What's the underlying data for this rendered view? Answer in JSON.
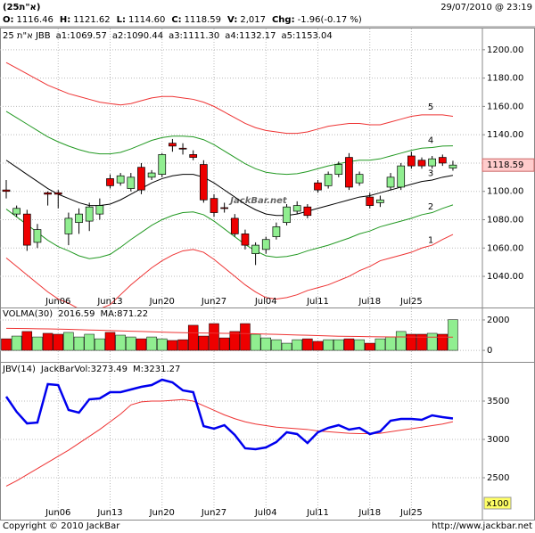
{
  "header": {
    "symbol": "(25א\"ת)",
    "datetime": "29/07/2010 @ 23:19",
    "stats": [
      {
        "label": "O:",
        "value": "1116.46"
      },
      {
        "label": "H:",
        "value": "1121.62"
      },
      {
        "label": "L:",
        "value": "1114.60"
      },
      {
        "label": "C:",
        "value": "1118.59"
      },
      {
        "label": "V:",
        "value": "2,017"
      },
      {
        "label": "Chg:",
        "value": "-1.96(-0.17 %)"
      }
    ]
  },
  "footer": {
    "copyright": "Copyright © 2010 JackBar",
    "url": "http://www.jackbar.net"
  },
  "chart_data": [
    {
      "type": "candlestick",
      "watermark": "JackBar.net",
      "legend": [
        "25 א\"ת JBB",
        "a1:1069.57",
        "a2:1090.44",
        "a3:1111.30",
        "a4:1132.17",
        "a5:1153.04"
      ],
      "categories": [
        null,
        null,
        null,
        null,
        null,
        "Jun06",
        null,
        null,
        null,
        null,
        "Jun13",
        null,
        null,
        null,
        null,
        "Jun20",
        null,
        null,
        null,
        null,
        "Jun27",
        null,
        null,
        null,
        null,
        "Jul04",
        null,
        null,
        null,
        null,
        "Jul11",
        null,
        null,
        null,
        null,
        "Jul18",
        null,
        null,
        null,
        "Jul25",
        null,
        null,
        null,
        null
      ],
      "open": [
        1101,
        1084,
        1084,
        1064,
        1099,
        1099,
        1070,
        1078,
        1079,
        1084,
        1109,
        1106,
        1102,
        1117,
        1110,
        1112,
        1134,
        1130.5,
        1126,
        1119,
        1095,
        1088.5,
        1081,
        1070,
        1056,
        1059,
        1068,
        1078,
        1086,
        1089,
        1106,
        1104,
        1112,
        1124,
        1106,
        1096,
        1092,
        1103,
        1103,
        1125,
        1122,
        1118,
        1124,
        1116.46
      ],
      "high": [
        1108,
        1090,
        1087,
        1077,
        1100,
        1101,
        1085,
        1088,
        1092,
        1095,
        1112,
        1113,
        1113,
        1120,
        1115,
        1127,
        1137,
        1134,
        1129,
        1122,
        1098,
        1092,
        1084,
        1073,
        1064,
        1068,
        1078,
        1091,
        1093,
        1091,
        1108,
        1114,
        1121,
        1127,
        1114,
        1099,
        1097,
        1113,
        1120,
        1128,
        1124,
        1125,
        1126,
        1121.62
      ],
      "low": [
        1095,
        1082,
        1058,
        1060,
        1090,
        1088,
        1062,
        1070,
        1072,
        1080,
        1102,
        1104,
        1100,
        1098,
        1108,
        1110,
        1128,
        1126,
        1122,
        1092,
        1082,
        1085,
        1068,
        1059,
        1048,
        1056,
        1066,
        1076,
        1084,
        1081,
        1099,
        1102,
        1110,
        1101,
        1104,
        1088,
        1089,
        1101,
        1101,
        1116,
        1116,
        1116,
        1118,
        1114.6
      ],
      "close": [
        1100,
        1088,
        1062,
        1073,
        1098,
        1098,
        1081,
        1084,
        1089,
        1090,
        1104,
        1111,
        1110,
        1101,
        1113,
        1126,
        1132,
        1130,
        1124,
        1094,
        1085,
        1088,
        1070,
        1062,
        1062,
        1066,
        1075,
        1089,
        1090,
        1083,
        1101,
        1112,
        1119,
        1103,
        1112,
        1090,
        1094,
        1110,
        1118,
        1118,
        1118,
        1123,
        1120,
        1118.59
      ],
      "up_color": "#90ee90",
      "down_color": "#ee0000",
      "series": [
        {
          "name": "5",
          "color": "#ee3333",
          "values": [
            1191,
            1187,
            1183,
            1179,
            1175,
            1172,
            1169,
            1167,
            1165,
            1163,
            1162,
            1161,
            1162,
            1164,
            1166,
            1167,
            1167,
            1166,
            1165,
            1163,
            1160,
            1156,
            1152,
            1148,
            1145,
            1143,
            1142,
            1141,
            1141,
            1142,
            1144,
            1146,
            1147,
            1148,
            1148,
            1147,
            1147,
            1149,
            1151,
            1153,
            1154,
            1154,
            1154,
            1153.04
          ]
        },
        {
          "name": "4",
          "color": "#229922",
          "values": [
            1156.5,
            1152,
            1147.5,
            1143,
            1138.5,
            1135,
            1132,
            1129.5,
            1127.5,
            1126.5,
            1126.5,
            1127.5,
            1130,
            1133,
            1136,
            1138,
            1139,
            1139,
            1138.5,
            1136.5,
            1133,
            1128.5,
            1124,
            1119.5,
            1116,
            1113.5,
            1112.5,
            1112,
            1112.5,
            1114,
            1116,
            1118,
            1119.5,
            1121,
            1122,
            1122,
            1123,
            1125,
            1127,
            1129,
            1130.5,
            1131,
            1132,
            1132.17
          ]
        },
        {
          "name": "3",
          "color": "#000000",
          "values": [
            1122,
            1117,
            1112,
            1107,
            1102,
            1098,
            1095,
            1092,
            1090,
            1090,
            1091,
            1094,
            1098,
            1102,
            1106,
            1109,
            1111,
            1112,
            1112,
            1110,
            1106,
            1101,
            1096,
            1091,
            1087,
            1084,
            1083,
            1083,
            1084,
            1086,
            1088,
            1090,
            1092,
            1094,
            1096,
            1097,
            1099,
            1101,
            1103,
            1105,
            1107,
            1108,
            1110,
            1111.3
          ]
        },
        {
          "name": "2",
          "color": "#229922",
          "values": [
            1087.5,
            1082,
            1076.5,
            1071,
            1065.5,
            1061,
            1058,
            1054.5,
            1052.5,
            1053.5,
            1055.5,
            1060.5,
            1066,
            1071,
            1076,
            1080,
            1083,
            1085,
            1085.5,
            1083.5,
            1079,
            1073.5,
            1068,
            1062.5,
            1058,
            1054.5,
            1053.5,
            1054,
            1055.5,
            1058,
            1060,
            1062,
            1064.5,
            1067,
            1070,
            1072,
            1075,
            1077,
            1079,
            1081,
            1083.5,
            1085,
            1088,
            1090.44
          ]
        },
        {
          "name": "1",
          "color": "#ee3333",
          "values": [
            1053,
            1047,
            1041,
            1035,
            1029,
            1024,
            1021,
            1017,
            1015,
            1017,
            1020,
            1027,
            1034,
            1040,
            1046,
            1051,
            1055,
            1058,
            1059,
            1057,
            1052,
            1046,
            1040,
            1034,
            1029,
            1025,
            1024,
            1025,
            1027,
            1030,
            1032,
            1034,
            1037,
            1040,
            1044,
            1047,
            1051,
            1053,
            1055,
            1057,
            1060,
            1062,
            1066,
            1069.57
          ]
        }
      ],
      "last_price": 1118.59,
      "ylim": [
        1018,
        1215
      ],
      "yticks": [
        {
          "value": 1040,
          "label": "1040.00"
        },
        {
          "value": 1060,
          "label": "1060.00"
        },
        {
          "value": 1080,
          "label": "1080.00"
        },
        {
          "value": 1100,
          "label": "1100.00"
        },
        {
          "value": 1120,
          "label": "1120.00"
        },
        {
          "value": 1140,
          "label": "1140.00"
        },
        {
          "value": 1160,
          "label": "1160.00"
        },
        {
          "value": 1180,
          "label": "1180.00"
        },
        {
          "value": 1200,
          "label": "1200.00"
        }
      ],
      "grid": true
    },
    {
      "type": "bar",
      "title": "VOLMA(30)",
      "legend": [
        {
          "text": "2016.59",
          "color": "#0000cc"
        },
        {
          "text": "MA:871.22",
          "color": "#cc0000"
        }
      ],
      "values": [
        760,
        940,
        1240,
        880,
        1120,
        1060,
        1180,
        880,
        1060,
        760,
        1180,
        1000,
        880,
        760,
        880,
        760,
        650,
        700,
        1650,
        940,
        1760,
        820,
        1240,
        1760,
        1060,
        820,
        700,
        470,
        700,
        760,
        590,
        700,
        700,
        760,
        700,
        470,
        760,
        880,
        1240,
        1060,
        1060,
        1120,
        1060,
        2017
      ],
      "series": [
        {
          "name": "MA",
          "color": "#ee3333",
          "values": [
            1450,
            1440,
            1430,
            1420,
            1410,
            1400,
            1380,
            1360,
            1340,
            1320,
            1300,
            1280,
            1260,
            1240,
            1220,
            1200,
            1180,
            1160,
            1150,
            1140,
            1130,
            1120,
            1110,
            1100,
            1090,
            1070,
            1050,
            1030,
            1010,
            990,
            970,
            950,
            930,
            920,
            910,
            900,
            890,
            880,
            880,
            875,
            870,
            870,
            870,
            871.22
          ]
        }
      ],
      "ylim": [
        -700,
        2760
      ],
      "yticks": [
        0,
        2000
      ],
      "grid": true
    },
    {
      "type": "line",
      "title": "JBV(14)",
      "unit_label": "x100",
      "series": [
        {
          "name": "JackBarVol:3273.49",
          "color": "#0000ee",
          "width": 2.5,
          "values": [
            3558,
            3360,
            3209,
            3220,
            3721,
            3709,
            3384,
            3349,
            3523,
            3535,
            3616,
            3616,
            3651,
            3686,
            3709,
            3779,
            3744,
            3640,
            3616,
            3174,
            3140,
            3186,
            3058,
            2884,
            2872,
            2895,
            2965,
            3093,
            3070,
            2953,
            3093,
            3151,
            3186,
            3128,
            3151,
            3070,
            3105,
            3244,
            3267,
            3267,
            3256,
            3314,
            3291,
            3273.49
          ]
        },
        {
          "name": "M:3231.27",
          "color": "#ee3333",
          "width": 1,
          "values": [
            2390,
            2460,
            2540,
            2620,
            2700,
            2780,
            2860,
            2950,
            3040,
            3130,
            3230,
            3330,
            3450,
            3490,
            3500,
            3500,
            3510,
            3520,
            3500,
            3440,
            3380,
            3320,
            3270,
            3230,
            3200,
            3180,
            3160,
            3150,
            3140,
            3130,
            3110,
            3100,
            3090,
            3080,
            3075,
            3075,
            3080,
            3100,
            3120,
            3140,
            3160,
            3180,
            3200,
            3231.27
          ]
        }
      ],
      "ylim": [
        1965,
        4000
      ],
      "yticks": [
        2500,
        3000,
        3500
      ],
      "grid": true
    }
  ]
}
